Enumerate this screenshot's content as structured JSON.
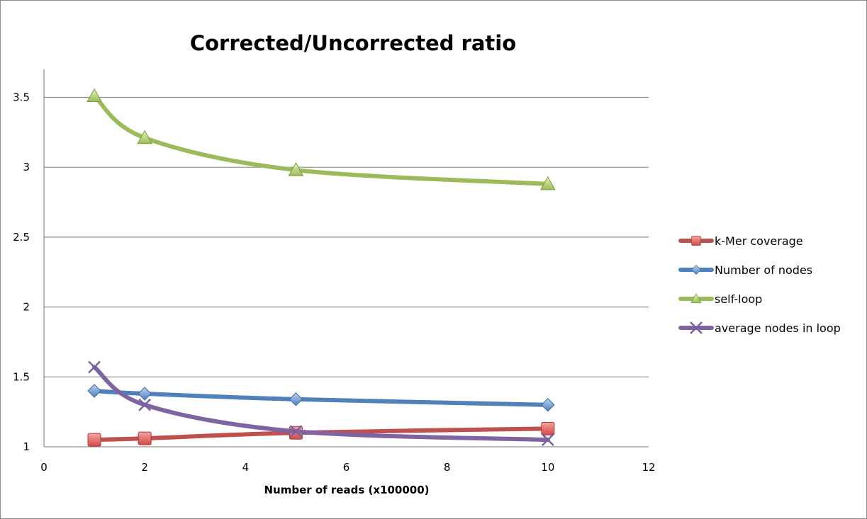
{
  "chart_data": {
    "type": "scatter",
    "title": "Corrected/Uncorrected ratio",
    "xlabel": "Number of reads (x100000)",
    "ylabel": "",
    "xlim": [
      0,
      12
    ],
    "ylim": [
      1,
      3.7
    ],
    "x_ticks": [
      "0",
      "2",
      "4",
      "6",
      "8",
      "10",
      "12"
    ],
    "y_ticks": [
      "1",
      "1.5",
      "2",
      "2.5",
      "3",
      "3.5"
    ],
    "x_tick_values": [
      0,
      2,
      4,
      6,
      8,
      10,
      12
    ],
    "y_tick_values": [
      1,
      1.5,
      2,
      2.5,
      3,
      3.5
    ],
    "grid": "horizontal major gridlines",
    "legend": "right",
    "smoothed_lines": true,
    "series": [
      {
        "name": "k-Mer coverage",
        "color": "#c0504d",
        "marker": "square",
        "x": [
          1,
          2,
          5,
          10
        ],
        "y": [
          1.05,
          1.06,
          1.1,
          1.13
        ]
      },
      {
        "name": "Number of nodes",
        "color": "#4f81bd",
        "marker": "diamond",
        "x": [
          1,
          2,
          5,
          10
        ],
        "y": [
          1.4,
          1.38,
          1.34,
          1.3
        ]
      },
      {
        "name": "self-loop",
        "color": "#9bbb59",
        "marker": "triangle",
        "x": [
          1,
          2,
          5,
          10
        ],
        "y": [
          3.51,
          3.21,
          2.98,
          2.88
        ]
      },
      {
        "name": "average nodes in loop",
        "color": "#8064a2",
        "marker": "x",
        "x": [
          1,
          2,
          5,
          10
        ],
        "y": [
          1.57,
          1.3,
          1.11,
          1.05
        ]
      }
    ]
  }
}
